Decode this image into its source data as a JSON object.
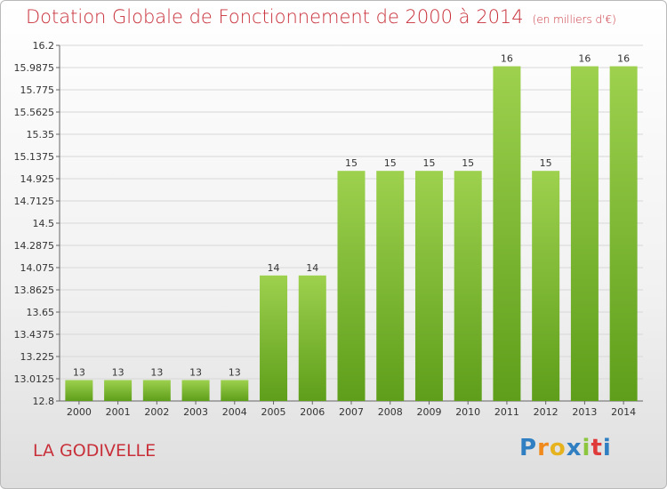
{
  "title": "Dotation Globale de Fonctionnement de 2000 à 2014",
  "unit": "(en milliers d'€)",
  "commune": "LA GODIVELLE",
  "logo_text": "Proxiti",
  "colors": {
    "title": "#c8303a",
    "bar_top": "#9dd14e",
    "bar_bottom": "#5e9e1a",
    "grid": "#d7d7d7"
  },
  "chart_data": {
    "type": "bar",
    "title": "Dotation Globale de Fonctionnement de 2000 à 2014",
    "xlabel": "",
    "ylabel": "",
    "categories": [
      "2000",
      "2001",
      "2002",
      "2003",
      "2004",
      "2005",
      "2006",
      "2007",
      "2008",
      "2009",
      "2010",
      "2011",
      "2012",
      "2013",
      "2014"
    ],
    "values": [
      13,
      13,
      13,
      13,
      13,
      14,
      14,
      15,
      15,
      15,
      15,
      16,
      15,
      16,
      16
    ],
    "data_labels": [
      "13",
      "13",
      "13",
      "13",
      "13",
      "14",
      "14",
      "15",
      "15",
      "15",
      "15",
      "16",
      "15",
      "16",
      "16"
    ],
    "ylim": [
      12.8,
      16.2
    ],
    "yticks": [
      12.8,
      13.0125,
      13.225,
      13.4375,
      13.65,
      13.8625,
      14.075,
      14.2875,
      14.5,
      14.7125,
      14.925,
      15.1375,
      15.35,
      15.5625,
      15.775,
      15.9875,
      16.2
    ],
    "ytick_labels": [
      "12.8",
      "13.0125",
      "13.225",
      "13.4375",
      "13.65",
      "13.8625",
      "14.075",
      "14.2875",
      "14.5",
      "14.7125",
      "14.925",
      "15.1375",
      "15.35",
      "15.5625",
      "15.775",
      "15.9875",
      "16.2"
    ],
    "grid": true,
    "legend": "none"
  }
}
